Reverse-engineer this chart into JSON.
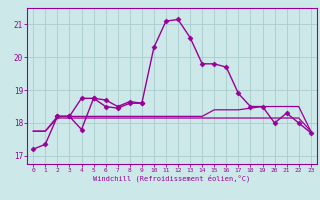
{
  "title": "",
  "xlabel": "Windchill (Refroidissement éolien,°C)",
  "background_color": "#cce8e8",
  "grid_color": "#aacccc",
  "line_color": "#990099",
  "xlim": [
    -0.5,
    23.5
  ],
  "ylim": [
    16.75,
    21.5
  ],
  "yticks": [
    17,
    18,
    19,
    20,
    21
  ],
  "xticks": [
    0,
    1,
    2,
    3,
    4,
    5,
    6,
    7,
    8,
    9,
    10,
    11,
    12,
    13,
    14,
    15,
    16,
    17,
    18,
    19,
    20,
    21,
    22,
    23
  ],
  "series": [
    {
      "x": [
        0,
        1,
        2,
        3,
        4,
        5,
        6,
        7,
        8,
        9,
        10,
        11,
        12,
        13,
        14,
        15,
        16,
        17,
        18,
        19,
        20,
        21,
        22,
        23
      ],
      "y": [
        17.2,
        17.35,
        18.2,
        18.2,
        17.8,
        18.75,
        18.7,
        18.5,
        18.65,
        18.6,
        20.3,
        21.1,
        21.15,
        20.6,
        19.8,
        19.8,
        19.7,
        18.9,
        18.5,
        18.5,
        18.0,
        18.3,
        18.0,
        17.7
      ],
      "marker": "D",
      "markersize": 2.5,
      "linewidth": 1.0
    },
    {
      "x": [
        0,
        1,
        2,
        3,
        4,
        5,
        6,
        7,
        8,
        9,
        10,
        11,
        12,
        13,
        14,
        15,
        16,
        17,
        18,
        19,
        20,
        21,
        22,
        23
      ],
      "y": [
        17.75,
        17.75,
        18.15,
        18.15,
        18.15,
        18.15,
        18.15,
        18.15,
        18.15,
        18.15,
        18.15,
        18.15,
        18.15,
        18.15,
        18.15,
        18.15,
        18.15,
        18.15,
        18.15,
        18.15,
        18.15,
        18.15,
        18.15,
        17.75
      ],
      "marker": null,
      "markersize": 0,
      "linewidth": 0.9
    },
    {
      "x": [
        0,
        1,
        2,
        3,
        4,
        5,
        6,
        7,
        8,
        9,
        10,
        11,
        12,
        13,
        14,
        15,
        16,
        17,
        18,
        19,
        20,
        21,
        22,
        23
      ],
      "y": [
        17.75,
        17.75,
        18.2,
        18.2,
        18.2,
        18.2,
        18.2,
        18.2,
        18.2,
        18.2,
        18.2,
        18.2,
        18.2,
        18.2,
        18.2,
        18.4,
        18.4,
        18.4,
        18.45,
        18.5,
        18.5,
        18.5,
        18.5,
        17.75
      ],
      "marker": null,
      "markersize": 0,
      "linewidth": 0.9
    },
    {
      "x": [
        2,
        3,
        4,
        5,
        6,
        7,
        8,
        9
      ],
      "y": [
        18.2,
        18.2,
        18.75,
        18.75,
        18.5,
        18.45,
        18.6,
        18.6
      ],
      "marker": "D",
      "markersize": 2.5,
      "linewidth": 1.0
    }
  ]
}
